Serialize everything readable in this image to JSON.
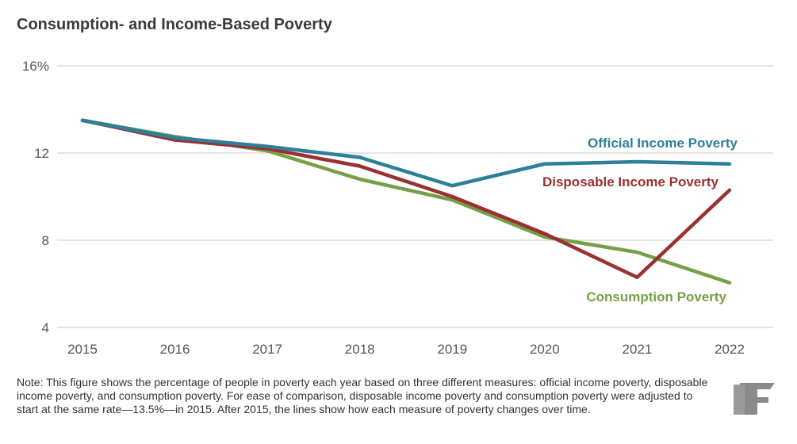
{
  "chart_data": {
    "type": "line",
    "title": "Consumption- and Income-Based Poverty",
    "x": [
      2015,
      2016,
      2017,
      2018,
      2019,
      2020,
      2021,
      2022
    ],
    "x_tick_labels": [
      "2015",
      "2016",
      "2017",
      "2018",
      "2019",
      "2020",
      "2021",
      "2022"
    ],
    "y_ticks": [
      4,
      8,
      12,
      16
    ],
    "y_tick_labels": [
      "4",
      "8",
      "12",
      "16%"
    ],
    "ylim": [
      4,
      16
    ],
    "grid": "horizontal",
    "series": [
      {
        "name": "Official Income Poverty",
        "color": "#2e7f99",
        "values": [
          13.5,
          12.7,
          12.3,
          11.8,
          10.5,
          11.5,
          11.6,
          11.5
        ]
      },
      {
        "name": "Disposable Income Poverty",
        "color": "#9b2f32",
        "values": [
          13.5,
          12.6,
          12.2,
          11.4,
          10.0,
          8.3,
          6.3,
          10.3
        ]
      },
      {
        "name": "Consumption Poverty",
        "color": "#76a046",
        "values": [
          13.5,
          12.75,
          12.1,
          10.8,
          9.85,
          8.15,
          7.45,
          6.05
        ]
      }
    ]
  },
  "note": "Note: This figure shows the percentage of people in poverty each year based on three different measures: official income poverty, disposable income poverty, and consumption poverty. For ease of comparison, disposable income poverty and consumption poverty were adjusted to start at the same rate—13.5%—in 2015. After 2015, the lines show how each measure of poverty changes over time.",
  "logo": "BF"
}
